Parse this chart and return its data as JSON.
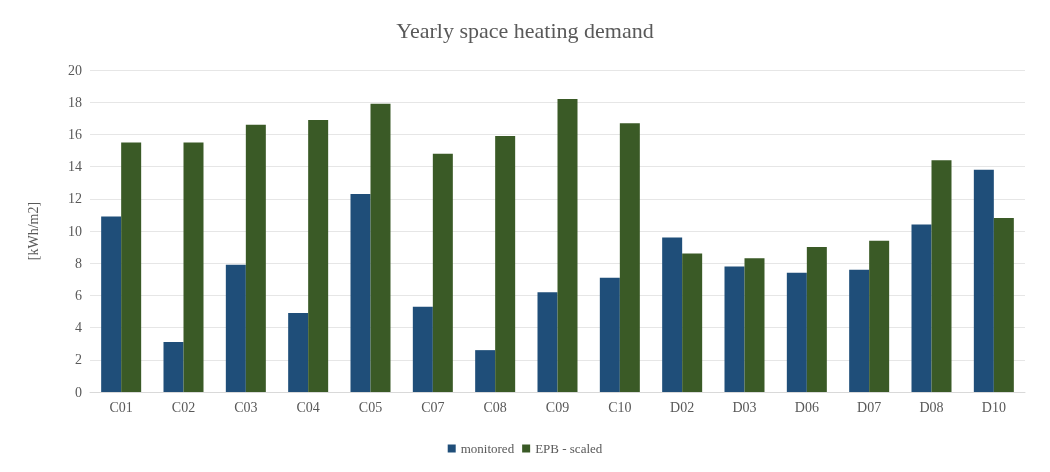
{
  "chart_data": {
    "type": "bar",
    "title": "Yearly space heating demand",
    "ylabel": "[kWh/m2]",
    "categories": [
      "C01",
      "C02",
      "C03",
      "C04",
      "C05",
      "C07",
      "C08",
      "C09",
      "C10",
      "D02",
      "D03",
      "D06",
      "D07",
      "D08",
      "D10"
    ],
    "series": [
      {
        "name": "monitored",
        "color": "#1f4e79",
        "values": [
          10.9,
          3.1,
          7.9,
          4.9,
          12.3,
          5.3,
          2.6,
          6.2,
          7.1,
          9.6,
          7.8,
          7.4,
          7.6,
          10.4,
          13.8
        ]
      },
      {
        "name": "EPB - scaled",
        "color": "#3a5a26",
        "values": [
          15.5,
          15.5,
          16.6,
          16.9,
          17.9,
          14.8,
          15.9,
          18.2,
          16.7,
          8.6,
          8.3,
          9.0,
          9.4,
          14.4,
          10.8
        ]
      }
    ],
    "ylim": [
      0,
      20
    ],
    "yticks": [
      0,
      2,
      4,
      6,
      8,
      10,
      12,
      14,
      16,
      18,
      20
    ],
    "grid": "y",
    "legend": "bottom"
  }
}
